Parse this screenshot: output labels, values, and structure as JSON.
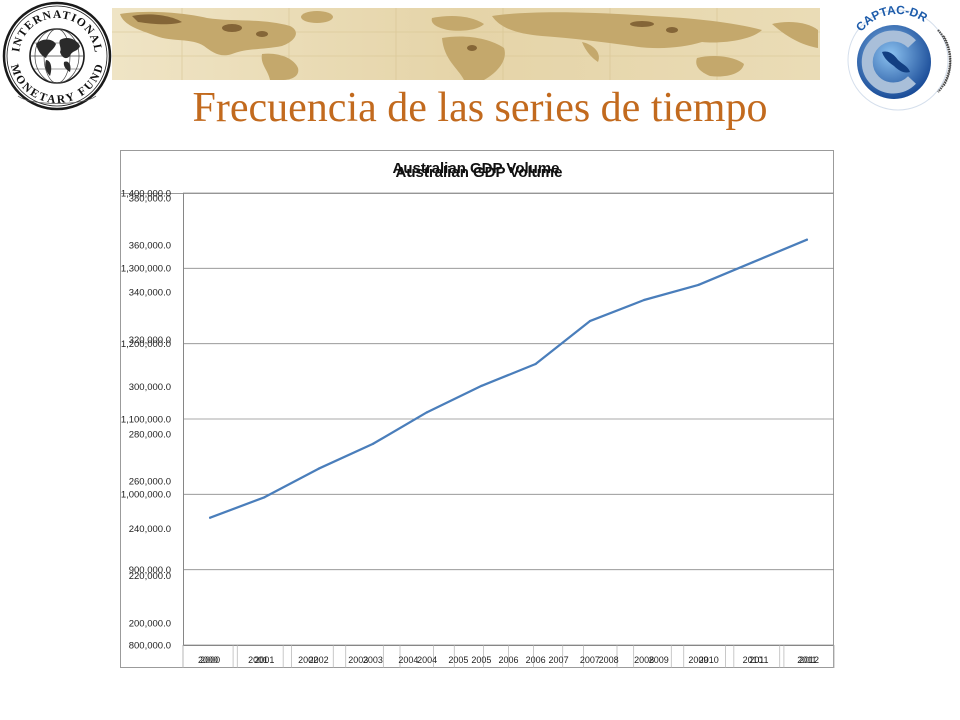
{
  "slide": {
    "title": "Frecuencia de las series de tiempo"
  },
  "logos": {
    "imf_top": "INTERNATIONAL",
    "imf_bottom": "MONETARY FUND",
    "captac": "CAPTAC-DR"
  },
  "colors": {
    "title": "#C26A1E",
    "line": "#4A7EBB",
    "gridline": "#8C8C8C",
    "axis": "#868686",
    "frame": "#9B9B9B",
    "banner": "#E8D9B2",
    "captac_blue": "#1C5BAA"
  },
  "chart_data": [
    {
      "type": "line",
      "title": "Australian GDP Volume",
      "categories": [
        "2000",
        "2001",
        "2002",
        "2003",
        "2004",
        "2005",
        "2006",
        "2007",
        "2008",
        "2009",
        "2010",
        "2011"
      ],
      "series": [
        {
          "values": [
            969000,
            996000,
            1034000,
            1067000,
            1109000,
            1144000,
            1173000,
            1230000,
            1258000,
            1278000,
            1308000,
            1338000
          ]
        }
      ],
      "ylim": [
        800000,
        1400000
      ],
      "yticks": [
        800000,
        900000,
        1000000,
        1100000,
        1200000,
        1300000,
        1400000
      ],
      "ytick_labels": [
        "800,000.0",
        "900,000.0",
        "1,000,000.0",
        "1,100,000.0",
        "1,200,000.0",
        "1,300,000.0",
        "1,400,000.0"
      ],
      "grid": true,
      "legend": "none"
    },
    {
      "type": "line",
      "title": "Australian GDP Volume",
      "categories": [
        "2000",
        "2001",
        "2002",
        "2003",
        "2004",
        "2005",
        "2006",
        "2007",
        "2008",
        "2009",
        "2010",
        "2011",
        "2012"
      ],
      "series": [],
      "ylim": [
        200000,
        380000
      ],
      "yticks": [
        200000,
        220000,
        240000,
        260000,
        280000,
        300000,
        320000,
        340000,
        360000,
        380000
      ],
      "ytick_labels": [
        "200,000.0",
        "220,000.0",
        "240,000.0",
        "260,000.0",
        "280,000.0",
        "300,000.0",
        "320,000.0",
        "340,000.0",
        "360,000.0",
        "380,000.0"
      ],
      "grid": false,
      "legend": "none"
    }
  ]
}
